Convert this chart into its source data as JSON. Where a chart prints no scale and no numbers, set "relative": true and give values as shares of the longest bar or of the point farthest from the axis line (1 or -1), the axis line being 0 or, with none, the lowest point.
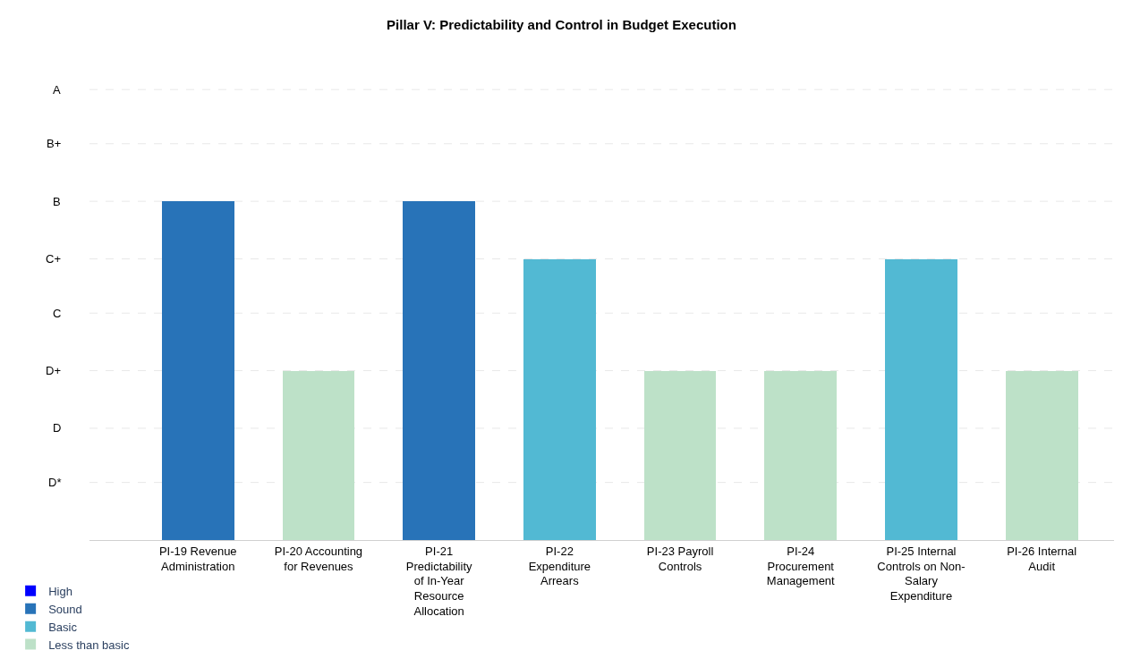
{
  "chart_data": {
    "type": "bar",
    "title": "Pillar V: Predictability and Control in Budget Execution",
    "categories": [
      "PI-19 Revenue Administration",
      "PI-20 Accounting for Revenues",
      "PI-21 Predictability of In-Year Resource Allocation",
      "PI-22 Expenditure Arrears",
      "PI-23 Payroll Controls",
      "PI-24 Procurement Management",
      "PI-25 Internal Controls on Non-Salary Expenditure",
      "PI-26 Internal Audit"
    ],
    "stacked": true,
    "relative": true,
    "series": [
      {
        "name": "High",
        "color": "#0000ff",
        "values": [
          null,
          null,
          null,
          null,
          null,
          null,
          null,
          null
        ]
      },
      {
        "name": "Sound",
        "color": "#2873b8",
        "values": [
          1,
          null,
          1,
          null,
          null,
          null,
          null,
          null
        ]
      },
      {
        "name": "Basic",
        "color": "#52b9d3",
        "values": [
          null,
          null,
          null,
          0.83,
          null,
          null,
          0.83,
          null
        ]
      },
      {
        "name": "Less than basic",
        "color": "#bde1c8",
        "values": [
          null,
          0.5,
          null,
          null,
          0.5,
          0.5,
          null,
          0.5
        ]
      }
    ],
    "ref_lines": [
      {
        "axis": "y",
        "value": 0.17,
        "label": "D*",
        "color": "#e8e8e8",
        "line_style": "dashed"
      },
      {
        "axis": "y",
        "value": 0.33,
        "label": "D",
        "color": "#e8e8e8",
        "line_style": "dashed"
      },
      {
        "axis": "y",
        "value": 0.5,
        "label": "D+",
        "color": "#e8e8e8",
        "line_style": "dashed"
      },
      {
        "axis": "y",
        "value": 0.67,
        "label": "C",
        "color": "#e8e8e8",
        "line_style": "dashed"
      },
      {
        "axis": "y",
        "value": 0.83,
        "label": "C+",
        "color": "#e8e8e8",
        "line_style": "dashed"
      },
      {
        "axis": "y",
        "value": 1,
        "label": "B",
        "color": "#e8e8e8",
        "line_style": "dashed"
      },
      {
        "axis": "y",
        "value": 1.17,
        "label": "B+",
        "color": "#e8e8e8",
        "line_style": "dashed"
      },
      {
        "axis": "y",
        "value": 1.33,
        "label": "A",
        "color": "#e8e8e8",
        "line_style": "dashed"
      }
    ],
    "legend": "bottom left"
  }
}
